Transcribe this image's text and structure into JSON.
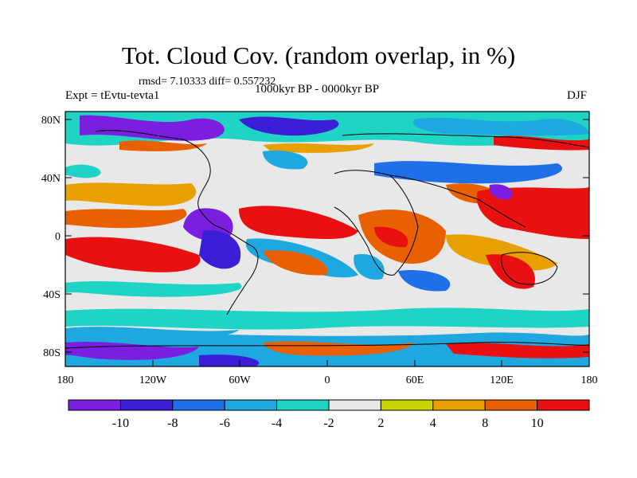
{
  "title": "Tot. Cloud Cov. (random overlap, in %)",
  "stats": "rmsd= 7.10333 diff= 0.557232",
  "experiment": "Expt = tEvtu-tevta1",
  "period": "1000kyr BP - 0000kyr BP",
  "season": "DJF",
  "map": {
    "projection": "cylindrical equidistant",
    "lon_range": [
      -180,
      180
    ],
    "lat_range": [
      -90,
      90
    ],
    "y_ticks": [
      "80N",
      "40N",
      "0",
      "40S",
      "80S"
    ],
    "x_ticks": [
      "180",
      "120W",
      "60W",
      "0",
      "60E",
      "120E",
      "180"
    ]
  },
  "colorbar": {
    "labels": [
      "-10",
      "-8",
      "-6",
      "-4",
      "-2",
      "2",
      "4",
      "8",
      "10"
    ],
    "colors": [
      "#7a1fe0",
      "#3a1fd6",
      "#1f6fe8",
      "#1fa8e0",
      "#1fd4c4",
      "#e8e8e8",
      "#c8d400",
      "#e8a000",
      "#e86000",
      "#e81010"
    ]
  }
}
